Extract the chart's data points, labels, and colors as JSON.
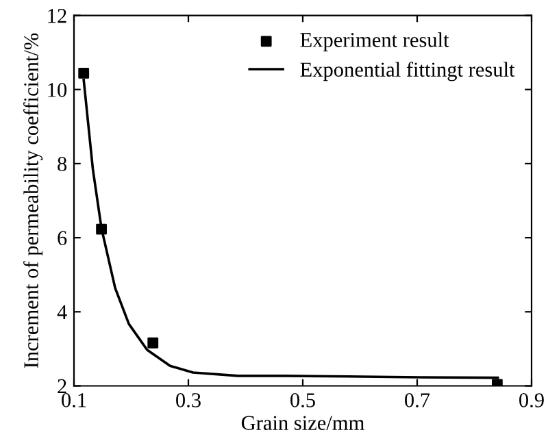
{
  "chart_data": {
    "type": "scatter",
    "xlabel": "Grain size/mm",
    "ylabel": "Increment of permeability coefficient/%",
    "xlim": [
      0.1,
      0.9
    ],
    "xticks": [
      0.1,
      0.3,
      0.5,
      0.7,
      0.9
    ],
    "ylim": [
      2,
      12
    ],
    "yticks": [
      2,
      4,
      6,
      8,
      10,
      12
    ],
    "grid": false,
    "legend": "top right",
    "series": [
      {
        "name": "Experiment result",
        "marker": "square",
        "color": "#000000",
        "x": [
          0.117,
          0.148,
          0.238,
          0.84
        ],
        "values": [
          10.44,
          6.23,
          3.16,
          2.04
        ]
      },
      {
        "name": "Exponential fittingt result",
        "type": "line",
        "marker": "none",
        "line_style": "solid",
        "color": "#000000",
        "x": [
          0.117,
          0.133,
          0.148,
          0.172,
          0.196,
          0.228,
          0.268,
          0.308,
          0.387,
          0.467,
          0.546,
          0.705,
          0.841
        ],
        "values": [
          10.26,
          7.85,
          6.26,
          4.64,
          3.67,
          2.97,
          2.54,
          2.36,
          2.27,
          2.27,
          2.26,
          2.23,
          2.22
        ]
      }
    ]
  }
}
